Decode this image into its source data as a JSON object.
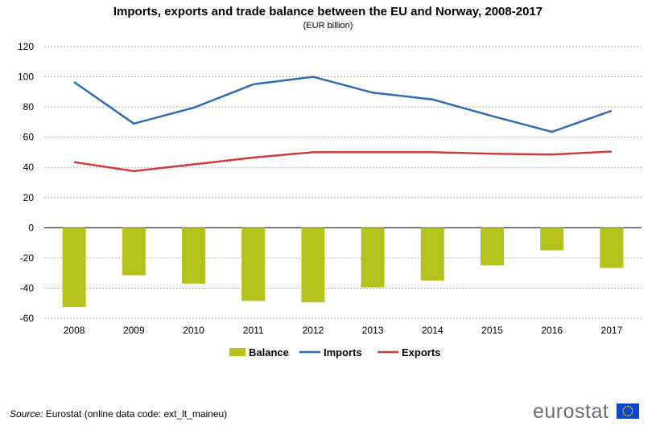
{
  "chart_data": {
    "type": "bar+line",
    "title": "Imports, exports and trade balance between the EU and Norway, 2008-2017",
    "subtitle": "(EUR billion)",
    "categories": [
      "2008",
      "2009",
      "2010",
      "2011",
      "2012",
      "2013",
      "2014",
      "2015",
      "2016",
      "2017"
    ],
    "series": [
      {
        "name": "Balance",
        "kind": "bar",
        "color": "#b5c21c",
        "values": [
          -52.5,
          -31.5,
          -37,
          -48.5,
          -49.5,
          -39.5,
          -35,
          -25,
          -15,
          -26.5
        ]
      },
      {
        "name": "Imports",
        "kind": "line",
        "color": "#2e6db5",
        "values": [
          96.5,
          69,
          79.5,
          95,
          100,
          89.5,
          85,
          74,
          63.5,
          77.5
        ]
      },
      {
        "name": "Exports",
        "kind": "line",
        "color": "#d33b3b",
        "values": [
          43.5,
          37.5,
          42,
          46.5,
          50,
          50,
          50,
          49,
          48.5,
          50.5
        ]
      }
    ],
    "ylim": [
      -60,
      120
    ],
    "yticks": [
      -60,
      -40,
      -20,
      0,
      20,
      40,
      60,
      80,
      100,
      120
    ],
    "grid": true,
    "legend": "bottom-center"
  },
  "source": {
    "label": "Source:",
    "text": "Eurostat (online data code: ext_lt_maineu)"
  },
  "logo": {
    "text": "eurostat",
    "flag_color": "#0e47cb",
    "star_color": "#ffdd00"
  }
}
